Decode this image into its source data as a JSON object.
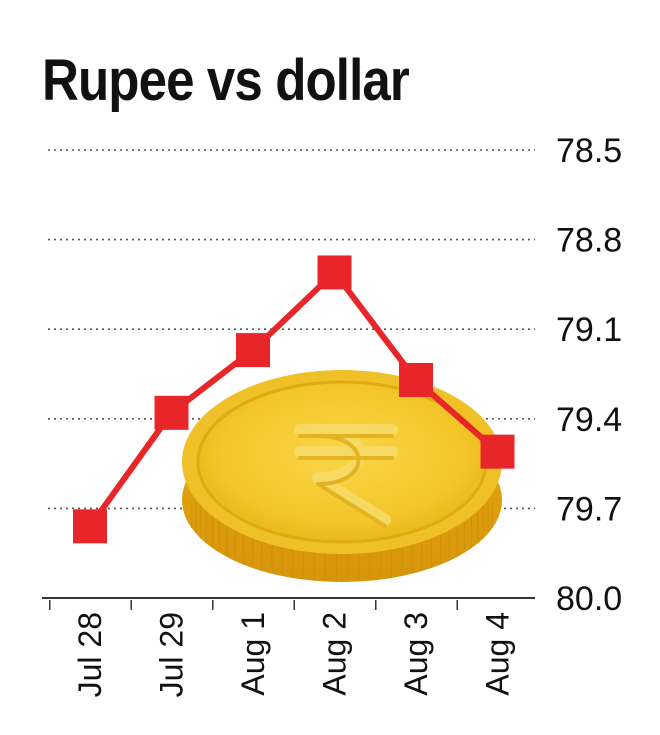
{
  "chart_data": {
    "type": "line",
    "title": "Rupee vs dollar",
    "xlabel": "",
    "ylabel": "",
    "categories": [
      "Jul 28",
      "Jul 29",
      "Aug 1",
      "Aug 2",
      "Aug 3",
      "Aug 4"
    ],
    "series": [
      {
        "values": [
          79.76,
          79.38,
          79.17,
          78.91,
          79.27,
          79.51
        ]
      }
    ],
    "y_ticks": [
      "78.5",
      "78.8",
      "79.1",
      "79.4",
      "79.7",
      "80.0"
    ],
    "ylim": [
      80.0,
      78.5
    ],
    "y_inverted": true,
    "grid": true,
    "colors": {
      "line": "#e8262a",
      "marker": "#e8262a",
      "grid": "#555555",
      "axis": "#333333",
      "coin": "#f3c629"
    },
    "decoration": "rupee-coin"
  }
}
